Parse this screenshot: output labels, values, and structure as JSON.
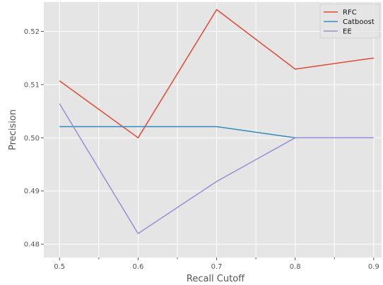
{
  "chart_data": {
    "type": "line",
    "x": [
      0.5,
      0.6,
      0.7,
      0.8,
      0.9
    ],
    "xticks": [
      0.5,
      0.6,
      0.7,
      0.8,
      0.9
    ],
    "xtick_labels": [
      "0.5",
      "0.6",
      "0.7",
      "0.8",
      "0.9"
    ],
    "yticks": [
      0.48,
      0.49,
      0.5,
      0.51,
      0.52
    ],
    "ytick_labels": [
      "0.48",
      "0.49",
      "0.50",
      "0.51",
      "0.52"
    ],
    "xlim": [
      0.48,
      0.91
    ],
    "ylim": [
      0.4775,
      0.5255
    ],
    "xlabel": "Recall Cutoff",
    "ylabel": "Precision",
    "grid": true,
    "legend_position": "top-right",
    "series": [
      {
        "name": "RFC",
        "color": "#e24a33",
        "values": [
          0.5107,
          0.5,
          0.5241,
          0.5129,
          0.515
        ]
      },
      {
        "name": "Catboost",
        "color": "#348abd",
        "values": [
          0.5021,
          0.5021,
          0.5021,
          0.5,
          0.5
        ]
      },
      {
        "name": "EE",
        "color": "#988ed5",
        "values": [
          0.5064,
          0.482,
          0.4918,
          0.5,
          0.5
        ]
      }
    ]
  }
}
